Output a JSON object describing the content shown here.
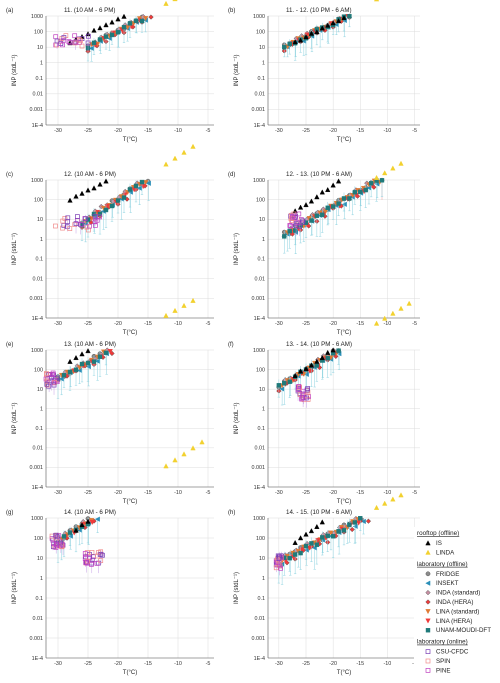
{
  "chart_data": {
    "type": "scatter",
    "panels": [
      {
        "label": "(a)",
        "title": "11. (10 AM - 6 PM)"
      },
      {
        "label": "(b)",
        "title": "11. - 12. (10 PM - 6 AM)"
      },
      {
        "label": "(c)",
        "title": "12. (10 AM - 6 PM)"
      },
      {
        "label": "(d)",
        "title": "12. - 13. (10 PM - 6 AM)"
      },
      {
        "label": "(e)",
        "title": "13. (10 AM - 6 PM)"
      },
      {
        "label": "(f)",
        "title": "13. - 14. (10 PM - 6 AM)"
      },
      {
        "label": "(g)",
        "title": "14. (10 AM - 6 PM)"
      },
      {
        "label": "(h)",
        "title": "14. - 15. (10 PM - 6 AM)"
      }
    ],
    "xlabel": "T(°C)",
    "ylabel": "INP (stdL⁻¹)",
    "xlim": [
      -32,
      -4
    ],
    "xticks": [
      -30,
      -25,
      -20,
      -15,
      -10,
      -5
    ],
    "xtick_labels": [
      "-30",
      "-25",
      "-20",
      "-15",
      "-10",
      "-5"
    ],
    "ylim": [
      0.0001,
      1000
    ],
    "yscale": "log",
    "yticks": [
      1000,
      100,
      10,
      1,
      0.1,
      0.01,
      0.001,
      0.0001
    ],
    "ytick_labels": [
      "1000",
      "100",
      "10",
      "1",
      "0.1",
      "0.01",
      "0.001",
      "1E-4"
    ],
    "grid": true,
    "legend_position": "bottom-right",
    "legend_groups": [
      {
        "title": "rooftop (offline)",
        "entries": [
          {
            "name": "IS",
            "marker": "triangle-up",
            "color": "#000000",
            "filled": true
          },
          {
            "name": "LINDA",
            "marker": "triangle-up",
            "color": "#f2d12e",
            "filled": true
          }
        ]
      },
      {
        "title": "laboratory (offline)",
        "entries": [
          {
            "name": "FRIDGE",
            "marker": "circle",
            "color": "#8c8c8c",
            "filled": true
          },
          {
            "name": "INSEKT",
            "marker": "triangle-left",
            "color": "#2b8fb8",
            "filled": true
          },
          {
            "name": "INDA (standard)",
            "marker": "diamond",
            "color": "#c88fa3",
            "filled": true
          },
          {
            "name": "INDA (HERA)",
            "marker": "diamond",
            "color": "#ef3a3a",
            "filled": true
          },
          {
            "name": "LINA (standard)",
            "marker": "triangle-down",
            "color": "#e07a35",
            "filled": true
          },
          {
            "name": "LINA (HERA)",
            "marker": "triangle-down",
            "color": "#ef3a3a",
            "filled": true
          },
          {
            "name": "UNAM-MOUDI-DFT",
            "marker": "square",
            "color": "#1f7a7a",
            "filled": true
          }
        ]
      },
      {
        "title": "laboratory (online)",
        "entries": [
          {
            "name": "CSU-CFDC",
            "marker": "square",
            "color": "#7a3fb5",
            "filled": false
          },
          {
            "name": "SPIN",
            "marker": "square",
            "color": "#f08a8a",
            "filled": false
          },
          {
            "name": "PINE",
            "marker": "square",
            "color": "#c040c0",
            "filled": false
          }
        ]
      }
    ]
  },
  "colors": {
    "IS": "#000000",
    "LINDA": "#f2d12e",
    "FRIDGE": "#8c8c8c",
    "INSEKT": "#2b8fb8",
    "INDA_std": "#c88fa3",
    "INDA_HERA": "#ef3a3a",
    "LINA_std": "#e07a35",
    "LINA_HERA": "#ef3a3a",
    "UNAM": "#1f7a7a",
    "CSU": "#7a3fb5",
    "SPIN": "#f08a8a",
    "PINE": "#c040c0",
    "grid": "#dcdcdc",
    "axis": "#555555",
    "errorbar": "#8fd3e0"
  }
}
